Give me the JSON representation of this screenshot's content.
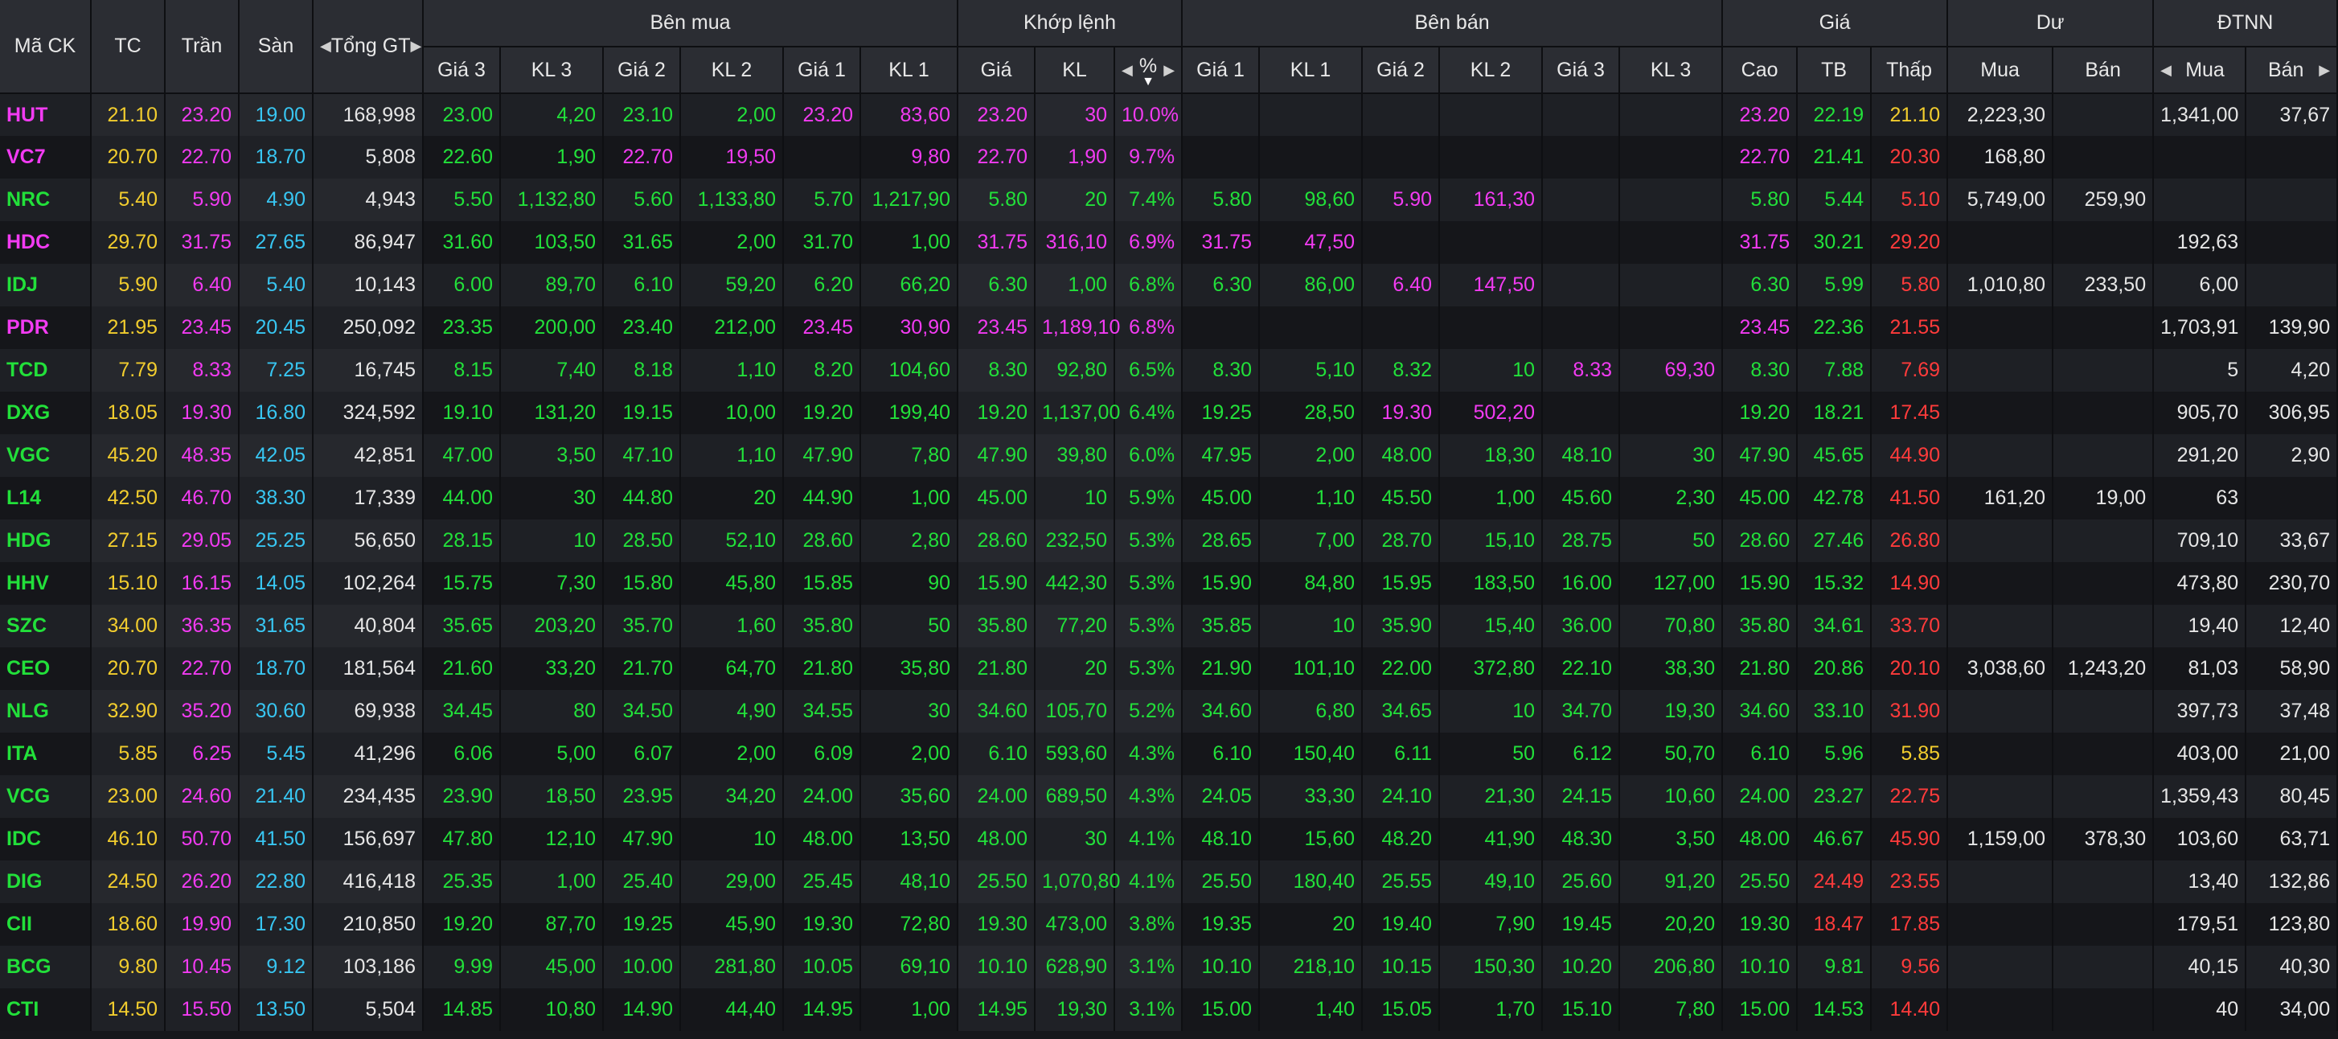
{
  "header": {
    "groups": {
      "symbol": "Mã CK",
      "ref": "TC",
      "ceil": "Trần",
      "floor": "Sàn",
      "total": "Tổng GT",
      "buy": "Bên mua",
      "match": "Khớp lệnh",
      "sell": "Bên bán",
      "price": "Giá",
      "remain": "Dư",
      "foreign": "ĐTNN"
    },
    "sub": {
      "buy": [
        "Giá 3",
        "KL 3",
        "Giá 2",
        "KL 2",
        "Giá 1",
        "KL 1"
      ],
      "match": [
        "Giá",
        "KL",
        "%"
      ],
      "sell": [
        "Giá 1",
        "KL 1",
        "Giá 2",
        "KL 2",
        "Giá 3",
        "KL 3"
      ],
      "price": [
        "Cao",
        "TB",
        "Thấp"
      ],
      "remain": [
        "Mua",
        "Bán"
      ],
      "foreign": [
        "Mua",
        "Bán"
      ]
    },
    "arrows": {
      "left": "◀",
      "right": "▶",
      "down": "▼"
    }
  },
  "colors": {
    "ceiling": "#f23bf2",
    "floor": "#38c6f2",
    "reference": "#f2cd2e",
    "up": "#22e03a",
    "down": "#ff3b3b",
    "neutral": "#e6e6e6"
  },
  "rows": [
    {
      "sym": "HUT",
      "tc": "21.10",
      "ce": "23.20",
      "fl": "19.00",
      "tg": "168,998",
      "b3": "23.00",
      "bv3": "4,20",
      "b2": "23.10",
      "bv2": "2,00",
      "b1": "23.20",
      "bv1": "83,60",
      "mp": "23.20",
      "mv": "30",
      "mc": "10.0%",
      "s1": "",
      "sv1": "",
      "s2": "",
      "sv2": "",
      "s3": "",
      "sv3": "",
      "hi": "23.20",
      "avg": "22.19",
      "lo": "21.10",
      "rb": "2,223,30",
      "rs": "",
      "fb": "1,341,00",
      "fs": "37,67"
    },
    {
      "sym": "VC7",
      "tc": "20.70",
      "ce": "22.70",
      "fl": "18.70",
      "tg": "5,808",
      "b3": "22.60",
      "bv3": "1,90",
      "b2": "22.70",
      "bv2": "19,50",
      "b1": "",
      "bv1": "9,80",
      "mp": "22.70",
      "mv": "1,90",
      "mc": "9.7%",
      "s1": "",
      "sv1": "",
      "s2": "",
      "sv2": "",
      "s3": "",
      "sv3": "",
      "hi": "22.70",
      "avg": "21.41",
      "lo": "20.30",
      "rb": "168,80",
      "rs": "",
      "fb": "",
      "fs": ""
    },
    {
      "sym": "NRC",
      "tc": "5.40",
      "ce": "5.90",
      "fl": "4.90",
      "tg": "4,943",
      "b3": "5.50",
      "bv3": "1,132,80",
      "b2": "5.60",
      "bv2": "1,133,80",
      "b1": "5.70",
      "bv1": "1,217,90",
      "mp": "5.80",
      "mv": "20",
      "mc": "7.4%",
      "s1": "5.80",
      "sv1": "98,60",
      "s2": "5.90",
      "sv2": "161,30",
      "s3": "",
      "sv3": "",
      "hi": "5.80",
      "avg": "5.44",
      "lo": "5.10",
      "rb": "5,749,00",
      "rs": "259,90",
      "fb": "",
      "fs": ""
    },
    {
      "sym": "HDC",
      "tc": "29.70",
      "ce": "31.75",
      "fl": "27.65",
      "tg": "86,947",
      "b3": "31.60",
      "bv3": "103,50",
      "b2": "31.65",
      "bv2": "2,00",
      "b1": "31.70",
      "bv1": "1,00",
      "mp": "31.75",
      "mv": "316,10",
      "mc": "6.9%",
      "s1": "31.75",
      "sv1": "47,50",
      "s2": "",
      "sv2": "",
      "s3": "",
      "sv3": "",
      "hi": "31.75",
      "avg": "30.21",
      "lo": "29.20",
      "rb": "",
      "rs": "",
      "fb": "192,63",
      "fs": ""
    },
    {
      "sym": "IDJ",
      "tc": "5.90",
      "ce": "6.40",
      "fl": "5.40",
      "tg": "10,143",
      "b3": "6.00",
      "bv3": "89,70",
      "b2": "6.10",
      "bv2": "59,20",
      "b1": "6.20",
      "bv1": "66,20",
      "mp": "6.30",
      "mv": "1,00",
      "mc": "6.8%",
      "s1": "6.30",
      "sv1": "86,00",
      "s2": "6.40",
      "sv2": "147,50",
      "s3": "",
      "sv3": "",
      "hi": "6.30",
      "avg": "5.99",
      "lo": "5.80",
      "rb": "1,010,80",
      "rs": "233,50",
      "fb": "6,00",
      "fs": ""
    },
    {
      "sym": "PDR",
      "tc": "21.95",
      "ce": "23.45",
      "fl": "20.45",
      "tg": "250,092",
      "b3": "23.35",
      "bv3": "200,00",
      "b2": "23.40",
      "bv2": "212,00",
      "b1": "23.45",
      "bv1": "30,90",
      "mp": "23.45",
      "mv": "1,189,10",
      "mc": "6.8%",
      "s1": "",
      "sv1": "",
      "s2": "",
      "sv2": "",
      "s3": "",
      "sv3": "",
      "hi": "23.45",
      "avg": "22.36",
      "lo": "21.55",
      "rb": "",
      "rs": "",
      "fb": "1,703,91",
      "fs": "139,90"
    },
    {
      "sym": "TCD",
      "tc": "7.79",
      "ce": "8.33",
      "fl": "7.25",
      "tg": "16,745",
      "b3": "8.15",
      "bv3": "7,40",
      "b2": "8.18",
      "bv2": "1,10",
      "b1": "8.20",
      "bv1": "104,60",
      "mp": "8.30",
      "mv": "92,80",
      "mc": "6.5%",
      "s1": "8.30",
      "sv1": "5,10",
      "s2": "8.32",
      "sv2": "10",
      "s3": "8.33",
      "sv3": "69,30",
      "hi": "8.30",
      "avg": "7.88",
      "lo": "7.69",
      "rb": "",
      "rs": "",
      "fb": "5",
      "fs": "4,20"
    },
    {
      "sym": "DXG",
      "tc": "18.05",
      "ce": "19.30",
      "fl": "16.80",
      "tg": "324,592",
      "b3": "19.10",
      "bv3": "131,20",
      "b2": "19.15",
      "bv2": "10,00",
      "b1": "19.20",
      "bv1": "199,40",
      "mp": "19.20",
      "mv": "1,137,00",
      "mc": "6.4%",
      "s1": "19.25",
      "sv1": "28,50",
      "s2": "19.30",
      "sv2": "502,20",
      "s3": "",
      "sv3": "",
      "hi": "19.20",
      "avg": "18.21",
      "lo": "17.45",
      "rb": "",
      "rs": "",
      "fb": "905,70",
      "fs": "306,95"
    },
    {
      "sym": "VGC",
      "tc": "45.20",
      "ce": "48.35",
      "fl": "42.05",
      "tg": "42,851",
      "b3": "47.00",
      "bv3": "3,50",
      "b2": "47.10",
      "bv2": "1,10",
      "b1": "47.90",
      "bv1": "7,80",
      "mp": "47.90",
      "mv": "39,80",
      "mc": "6.0%",
      "s1": "47.95",
      "sv1": "2,00",
      "s2": "48.00",
      "sv2": "18,30",
      "s3": "48.10",
      "sv3": "30",
      "hi": "47.90",
      "avg": "45.65",
      "lo": "44.90",
      "rb": "",
      "rs": "",
      "fb": "291,20",
      "fs": "2,90"
    },
    {
      "sym": "L14",
      "tc": "42.50",
      "ce": "46.70",
      "fl": "38.30",
      "tg": "17,339",
      "b3": "44.00",
      "bv3": "30",
      "b2": "44.80",
      "bv2": "20",
      "b1": "44.90",
      "bv1": "1,00",
      "mp": "45.00",
      "mv": "10",
      "mc": "5.9%",
      "s1": "45.00",
      "sv1": "1,10",
      "s2": "45.50",
      "sv2": "1,00",
      "s3": "45.60",
      "sv3": "2,30",
      "hi": "45.00",
      "avg": "42.78",
      "lo": "41.50",
      "rb": "161,20",
      "rs": "19,00",
      "fb": "63",
      "fs": ""
    },
    {
      "sym": "HDG",
      "tc": "27.15",
      "ce": "29.05",
      "fl": "25.25",
      "tg": "56,650",
      "b3": "28.15",
      "bv3": "10",
      "b2": "28.50",
      "bv2": "52,10",
      "b1": "28.60",
      "bv1": "2,80",
      "mp": "28.60",
      "mv": "232,50",
      "mc": "5.3%",
      "s1": "28.65",
      "sv1": "7,00",
      "s2": "28.70",
      "sv2": "15,10",
      "s3": "28.75",
      "sv3": "50",
      "hi": "28.60",
      "avg": "27.46",
      "lo": "26.80",
      "rb": "",
      "rs": "",
      "fb": "709,10",
      "fs": "33,67"
    },
    {
      "sym": "HHV",
      "tc": "15.10",
      "ce": "16.15",
      "fl": "14.05",
      "tg": "102,264",
      "b3": "15.75",
      "bv3": "7,30",
      "b2": "15.80",
      "bv2": "45,80",
      "b1": "15.85",
      "bv1": "90",
      "mp": "15.90",
      "mv": "442,30",
      "mc": "5.3%",
      "s1": "15.90",
      "sv1": "84,80",
      "s2": "15.95",
      "sv2": "183,50",
      "s3": "16.00",
      "sv3": "127,00",
      "hi": "15.90",
      "avg": "15.32",
      "lo": "14.90",
      "rb": "",
      "rs": "",
      "fb": "473,80",
      "fs": "230,70"
    },
    {
      "sym": "SZC",
      "tc": "34.00",
      "ce": "36.35",
      "fl": "31.65",
      "tg": "40,804",
      "b3": "35.65",
      "bv3": "203,20",
      "b2": "35.70",
      "bv2": "1,60",
      "b1": "35.80",
      "bv1": "50",
      "mp": "35.80",
      "mv": "77,20",
      "mc": "5.3%",
      "s1": "35.85",
      "sv1": "10",
      "s2": "35.90",
      "sv2": "15,40",
      "s3": "36.00",
      "sv3": "70,80",
      "hi": "35.80",
      "avg": "34.61",
      "lo": "33.70",
      "rb": "",
      "rs": "",
      "fb": "19,40",
      "fs": "12,40"
    },
    {
      "sym": "CEO",
      "tc": "20.70",
      "ce": "22.70",
      "fl": "18.70",
      "tg": "181,564",
      "b3": "21.60",
      "bv3": "33,20",
      "b2": "21.70",
      "bv2": "64,70",
      "b1": "21.80",
      "bv1": "35,80",
      "mp": "21.80",
      "mv": "20",
      "mc": "5.3%",
      "s1": "21.90",
      "sv1": "101,10",
      "s2": "22.00",
      "sv2": "372,80",
      "s3": "22.10",
      "sv3": "38,30",
      "hi": "21.80",
      "avg": "20.86",
      "lo": "20.10",
      "rb": "3,038,60",
      "rs": "1,243,20",
      "fb": "81,03",
      "fs": "58,90"
    },
    {
      "sym": "NLG",
      "tc": "32.90",
      "ce": "35.20",
      "fl": "30.60",
      "tg": "69,938",
      "b3": "34.45",
      "bv3": "80",
      "b2": "34.50",
      "bv2": "4,90",
      "b1": "34.55",
      "bv1": "30",
      "mp": "34.60",
      "mv": "105,70",
      "mc": "5.2%",
      "s1": "34.60",
      "sv1": "6,80",
      "s2": "34.65",
      "sv2": "10",
      "s3": "34.70",
      "sv3": "19,30",
      "hi": "34.60",
      "avg": "33.10",
      "lo": "31.90",
      "rb": "",
      "rs": "",
      "fb": "397,73",
      "fs": "37,48"
    },
    {
      "sym": "ITA",
      "tc": "5.85",
      "ce": "6.25",
      "fl": "5.45",
      "tg": "41,296",
      "b3": "6.06",
      "bv3": "5,00",
      "b2": "6.07",
      "bv2": "2,00",
      "b1": "6.09",
      "bv1": "2,00",
      "mp": "6.10",
      "mv": "593,60",
      "mc": "4.3%",
      "s1": "6.10",
      "sv1": "150,40",
      "s2": "6.11",
      "sv2": "50",
      "s3": "6.12",
      "sv3": "50,70",
      "hi": "6.10",
      "avg": "5.96",
      "lo": "5.85",
      "rb": "",
      "rs": "",
      "fb": "403,00",
      "fs": "21,00"
    },
    {
      "sym": "VCG",
      "tc": "23.00",
      "ce": "24.60",
      "fl": "21.40",
      "tg": "234,435",
      "b3": "23.90",
      "bv3": "18,50",
      "b2": "23.95",
      "bv2": "34,20",
      "b1": "24.00",
      "bv1": "35,60",
      "mp": "24.00",
      "mv": "689,50",
      "mc": "4.3%",
      "s1": "24.05",
      "sv1": "33,30",
      "s2": "24.10",
      "sv2": "21,30",
      "s3": "24.15",
      "sv3": "10,60",
      "hi": "24.00",
      "avg": "23.27",
      "lo": "22.75",
      "rb": "",
      "rs": "",
      "fb": "1,359,43",
      "fs": "80,45"
    },
    {
      "sym": "IDC",
      "tc": "46.10",
      "ce": "50.70",
      "fl": "41.50",
      "tg": "156,697",
      "b3": "47.80",
      "bv3": "12,10",
      "b2": "47.90",
      "bv2": "10",
      "b1": "48.00",
      "bv1": "13,50",
      "mp": "48.00",
      "mv": "30",
      "mc": "4.1%",
      "s1": "48.10",
      "sv1": "15,60",
      "s2": "48.20",
      "sv2": "41,90",
      "s3": "48.30",
      "sv3": "3,50",
      "hi": "48.00",
      "avg": "46.67",
      "lo": "45.90",
      "rb": "1,159,00",
      "rs": "378,30",
      "fb": "103,60",
      "fs": "63,71"
    },
    {
      "sym": "DIG",
      "tc": "24.50",
      "ce": "26.20",
      "fl": "22.80",
      "tg": "416,418",
      "b3": "25.35",
      "bv3": "1,00",
      "b2": "25.40",
      "bv2": "29,00",
      "b1": "25.45",
      "bv1": "48,10",
      "mp": "25.50",
      "mv": "1,070,80",
      "mc": "4.1%",
      "s1": "25.50",
      "sv1": "180,40",
      "s2": "25.55",
      "sv2": "49,10",
      "s3": "25.60",
      "sv3": "91,20",
      "hi": "25.50",
      "avg": "24.49",
      "lo": "23.55",
      "rb": "",
      "rs": "",
      "fb": "13,40",
      "fs": "132,86"
    },
    {
      "sym": "CII",
      "tc": "18.60",
      "ce": "19.90",
      "fl": "17.30",
      "tg": "210,850",
      "b3": "19.20",
      "bv3": "87,70",
      "b2": "19.25",
      "bv2": "45,90",
      "b1": "19.30",
      "bv1": "72,80",
      "mp": "19.30",
      "mv": "473,00",
      "mc": "3.8%",
      "s1": "19.35",
      "sv1": "20",
      "s2": "19.40",
      "sv2": "7,90",
      "s3": "19.45",
      "sv3": "20,20",
      "hi": "19.30",
      "avg": "18.47",
      "lo": "17.85",
      "rb": "",
      "rs": "",
      "fb": "179,51",
      "fs": "123,80"
    },
    {
      "sym": "BCG",
      "tc": "9.80",
      "ce": "10.45",
      "fl": "9.12",
      "tg": "103,186",
      "b3": "9.99",
      "bv3": "45,00",
      "b2": "10.00",
      "bv2": "281,80",
      "b1": "10.05",
      "bv1": "69,10",
      "mp": "10.10",
      "mv": "628,90",
      "mc": "3.1%",
      "s1": "10.10",
      "sv1": "218,10",
      "s2": "10.15",
      "sv2": "150,30",
      "s3": "10.20",
      "sv3": "206,80",
      "hi": "10.10",
      "avg": "9.81",
      "lo": "9.56",
      "rb": "",
      "rs": "",
      "fb": "40,15",
      "fs": "40,30"
    },
    {
      "sym": "CTI",
      "tc": "14.50",
      "ce": "15.50",
      "fl": "13.50",
      "tg": "5,504",
      "b3": "14.85",
      "bv3": "10,80",
      "b2": "14.90",
      "bv2": "44,40",
      "b1": "14.95",
      "bv1": "1,00",
      "mp": "14.95",
      "mv": "19,30",
      "mc": "3.1%",
      "s1": "15.00",
      "sv1": "1,40",
      "s2": "15.05",
      "sv2": "1,70",
      "s3": "15.10",
      "sv3": "7,80",
      "hi": "15.00",
      "avg": "14.53",
      "lo": "14.40",
      "rb": "",
      "rs": "",
      "fb": "40",
      "fs": "34,00"
    }
  ]
}
